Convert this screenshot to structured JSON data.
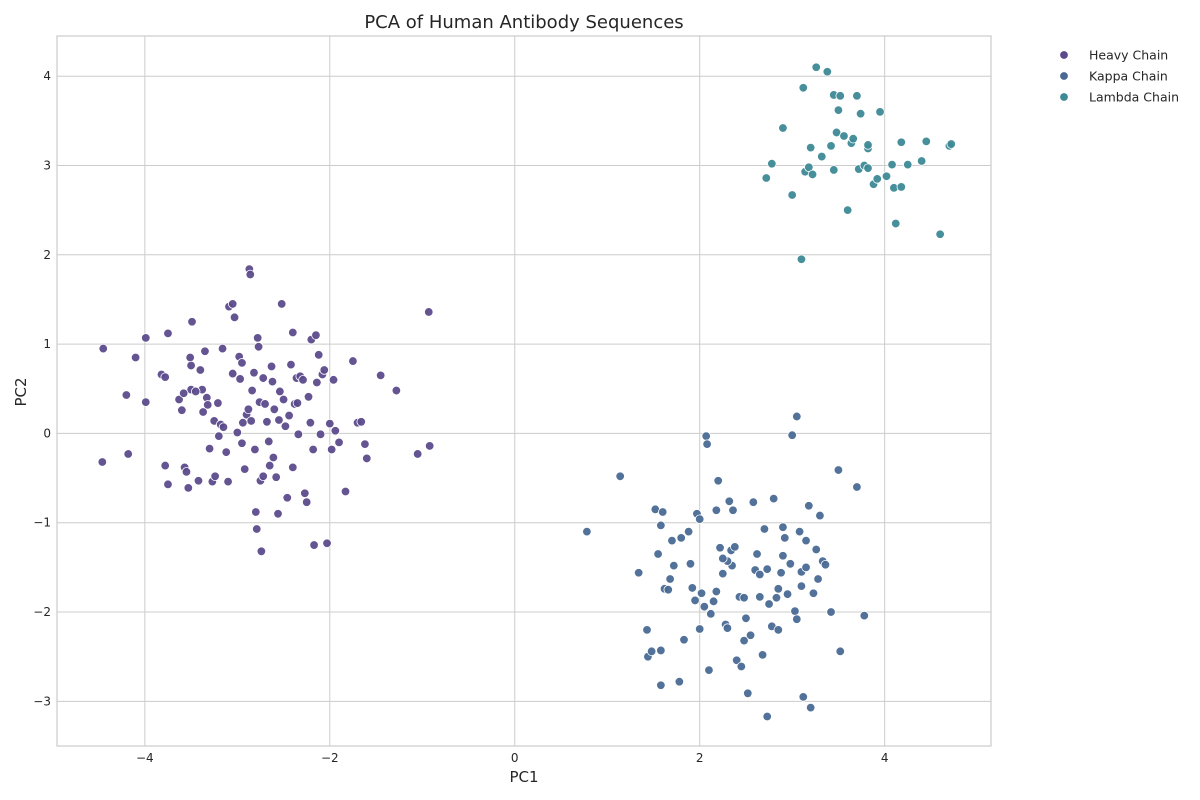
{
  "chart_data": {
    "type": "scatter",
    "title": "PCA of Human Antibody Sequences",
    "xlabel": "PC1",
    "ylabel": "PC2",
    "xlim": [
      -4.95,
      5.15
    ],
    "ylim": [
      -3.5,
      4.45
    ],
    "xticks": [
      -4,
      -2,
      0,
      2,
      4
    ],
    "yticks": [
      -3,
      -2,
      -1,
      0,
      1,
      2,
      3,
      4
    ],
    "grid": true,
    "legend_position": "outside-right",
    "series": [
      {
        "name": "Heavy Chain",
        "color": "#5c4b8c",
        "points": [
          [
            -4.45,
            0.95
          ],
          [
            -4.46,
            -0.32
          ],
          [
            -4.2,
            0.43
          ],
          [
            -4.18,
            -0.23
          ],
          [
            -4.1,
            0.85
          ],
          [
            -3.99,
            1.07
          ],
          [
            -3.99,
            0.35
          ],
          [
            -3.82,
            0.66
          ],
          [
            -3.78,
            0.63
          ],
          [
            -3.78,
            -0.36
          ],
          [
            -3.75,
            1.12
          ],
          [
            -3.75,
            -0.57
          ],
          [
            -3.63,
            0.38
          ],
          [
            -3.6,
            0.26
          ],
          [
            -3.57,
            -0.38
          ],
          [
            -3.55,
            -0.43
          ],
          [
            -3.53,
            -0.61
          ],
          [
            -3.51,
            0.85
          ],
          [
            -3.5,
            0.76
          ],
          [
            -3.5,
            0.49
          ],
          [
            -3.49,
            1.25
          ],
          [
            -3.42,
            -0.53
          ],
          [
            -3.4,
            0.71
          ],
          [
            -3.38,
            0.49
          ],
          [
            -3.37,
            0.24
          ],
          [
            -3.35,
            0.92
          ],
          [
            -3.33,
            0.4
          ],
          [
            -3.32,
            0.32
          ],
          [
            -3.3,
            -0.17
          ],
          [
            -3.27,
            -0.54
          ],
          [
            -3.25,
            0.14
          ],
          [
            -3.24,
            -0.48
          ],
          [
            -3.21,
            0.34
          ],
          [
            -3.18,
            0.1
          ],
          [
            -3.16,
            0.95
          ],
          [
            -3.12,
            -0.21
          ],
          [
            -3.1,
            -0.54
          ],
          [
            -3.09,
            1.42
          ],
          [
            -3.05,
            1.45
          ],
          [
            -3.03,
            1.3
          ],
          [
            -2.98,
            0.86
          ],
          [
            -2.97,
            0.61
          ],
          [
            -2.95,
            0.79
          ],
          [
            -2.94,
            0.12
          ],
          [
            -2.92,
            -0.4
          ],
          [
            -2.9,
            0.21
          ],
          [
            -2.88,
            0.27
          ],
          [
            -2.87,
            1.84
          ],
          [
            -2.86,
            1.78
          ],
          [
            -2.84,
            0.48
          ],
          [
            -2.82,
            0.68
          ],
          [
            -2.81,
            -0.18
          ],
          [
            -2.8,
            -0.88
          ],
          [
            -2.79,
            -1.07
          ],
          [
            -2.78,
            1.07
          ],
          [
            -2.77,
            0.97
          ],
          [
            -2.76,
            0.35
          ],
          [
            -2.75,
            -0.53
          ],
          [
            -2.74,
            -1.32
          ],
          [
            -2.72,
            0.62
          ],
          [
            -2.7,
            0.33
          ],
          [
            -2.68,
            0.13
          ],
          [
            -2.66,
            -0.09
          ],
          [
            -2.65,
            -0.36
          ],
          [
            -2.63,
            0.75
          ],
          [
            -2.62,
            0.58
          ],
          [
            -2.6,
            0.27
          ],
          [
            -2.58,
            -0.49
          ],
          [
            -2.56,
            -0.9
          ],
          [
            -2.54,
            0.47
          ],
          [
            -2.52,
            1.45
          ],
          [
            -2.5,
            0.38
          ],
          [
            -2.48,
            0.08
          ],
          [
            -2.46,
            -0.72
          ],
          [
            -2.44,
            0.2
          ],
          [
            -2.42,
            0.77
          ],
          [
            -2.4,
            1.13
          ],
          [
            -2.38,
            0.33
          ],
          [
            -2.36,
            0.62
          ],
          [
            -2.34,
            -0.01
          ],
          [
            -2.32,
            0.64
          ],
          [
            -2.29,
            0.6
          ],
          [
            -2.27,
            -0.67
          ],
          [
            -2.25,
            -0.77
          ],
          [
            -2.23,
            0.41
          ],
          [
            -2.21,
            0.12
          ],
          [
            -2.2,
            1.05
          ],
          [
            -2.18,
            -0.18
          ],
          [
            -2.17,
            -1.25
          ],
          [
            -2.15,
            1.1
          ],
          [
            -2.14,
            0.57
          ],
          [
            -2.12,
            0.88
          ],
          [
            -2.1,
            -0.01
          ],
          [
            -2.08,
            0.66
          ],
          [
            -2.06,
            0.71
          ],
          [
            -2.03,
            -1.23
          ],
          [
            -2.0,
            0.11
          ],
          [
            -1.98,
            -0.18
          ],
          [
            -1.96,
            0.6
          ],
          [
            -1.94,
            0.03
          ],
          [
            -1.9,
            -0.1
          ],
          [
            -1.83,
            -0.65
          ],
          [
            -1.75,
            0.81
          ],
          [
            -1.7,
            0.12
          ],
          [
            -1.66,
            0.13
          ],
          [
            -1.62,
            -0.12
          ],
          [
            -1.6,
            -0.28
          ],
          [
            -1.45,
            0.65
          ],
          [
            -1.28,
            0.48
          ],
          [
            -1.05,
            -0.23
          ],
          [
            -0.93,
            1.36
          ],
          [
            -0.92,
            -0.14
          ],
          [
            -3.0,
            0.01
          ],
          [
            -2.95,
            -0.11
          ],
          [
            -3.45,
            0.47
          ],
          [
            -2.72,
            -0.48
          ],
          [
            -2.61,
            -0.27
          ],
          [
            -3.05,
            0.67
          ],
          [
            -2.85,
            0.14
          ],
          [
            -2.4,
            -0.38
          ],
          [
            -3.58,
            0.45
          ],
          [
            -3.2,
            -0.03
          ],
          [
            -2.55,
            0.15
          ],
          [
            -2.35,
            0.34
          ],
          [
            -3.15,
            0.07
          ]
        ]
      },
      {
        "name": "Kappa Chain",
        "color": "#4a6a94",
        "points": [
          [
            0.78,
            -1.1
          ],
          [
            1.14,
            -0.48
          ],
          [
            1.34,
            -1.56
          ],
          [
            1.44,
            -2.5
          ],
          [
            1.48,
            -2.44
          ],
          [
            1.52,
            -0.85
          ],
          [
            1.55,
            -1.35
          ],
          [
            1.58,
            -1.03
          ],
          [
            1.6,
            -0.88
          ],
          [
            1.62,
            -1.74
          ],
          [
            1.66,
            -1.75
          ],
          [
            1.7,
            -1.2
          ],
          [
            1.72,
            -1.48
          ],
          [
            1.78,
            -2.78
          ],
          [
            1.8,
            -1.17
          ],
          [
            1.83,
            -2.31
          ],
          [
            1.88,
            -1.1
          ],
          [
            1.92,
            -1.73
          ],
          [
            1.95,
            -1.87
          ],
          [
            1.97,
            -0.9
          ],
          [
            2.0,
            -0.96
          ],
          [
            2.02,
            -1.79
          ],
          [
            2.05,
            -1.94
          ],
          [
            2.07,
            -0.03
          ],
          [
            2.08,
            -0.12
          ],
          [
            2.1,
            -2.65
          ],
          [
            2.12,
            -2.02
          ],
          [
            2.15,
            -1.88
          ],
          [
            2.18,
            -0.86
          ],
          [
            2.2,
            -0.53
          ],
          [
            2.22,
            -1.28
          ],
          [
            2.25,
            -1.57
          ],
          [
            2.28,
            -2.14
          ],
          [
            2.3,
            -2.18
          ],
          [
            2.32,
            -0.76
          ],
          [
            2.34,
            -1.31
          ],
          [
            2.36,
            -0.86
          ],
          [
            2.38,
            -1.27
          ],
          [
            2.4,
            -2.54
          ],
          [
            2.43,
            -1.83
          ],
          [
            2.45,
            -2.61
          ],
          [
            2.48,
            -2.32
          ],
          [
            2.5,
            -2.07
          ],
          [
            2.52,
            -2.91
          ],
          [
            2.55,
            -2.26
          ],
          [
            2.58,
            -0.77
          ],
          [
            2.6,
            -1.53
          ],
          [
            2.62,
            -1.35
          ],
          [
            2.65,
            -1.83
          ],
          [
            2.68,
            -2.48
          ],
          [
            2.7,
            -1.07
          ],
          [
            2.73,
            -1.52
          ],
          [
            2.75,
            -1.91
          ],
          [
            2.78,
            -2.16
          ],
          [
            2.8,
            -0.73
          ],
          [
            2.83,
            -1.84
          ],
          [
            2.85,
            -2.2
          ],
          [
            2.88,
            -1.56
          ],
          [
            2.9,
            -1.37
          ],
          [
            2.92,
            -1.17
          ],
          [
            2.95,
            -1.8
          ],
          [
            2.98,
            -1.46
          ],
          [
            3.0,
            -0.02
          ],
          [
            3.03,
            -1.99
          ],
          [
            3.05,
            0.19
          ],
          [
            3.08,
            -1.1
          ],
          [
            3.1,
            -1.55
          ],
          [
            3.12,
            -2.95
          ],
          [
            3.15,
            -1.2
          ],
          [
            3.18,
            -0.81
          ],
          [
            3.2,
            -3.07
          ],
          [
            3.23,
            -1.79
          ],
          [
            3.26,
            -1.3
          ],
          [
            3.28,
            -1.63
          ],
          [
            3.3,
            -0.92
          ],
          [
            3.33,
            -1.43
          ],
          [
            3.36,
            -1.47
          ],
          [
            3.42,
            -2.0
          ],
          [
            3.5,
            -0.41
          ],
          [
            3.52,
            -2.44
          ],
          [
            3.7,
            -0.6
          ],
          [
            3.78,
            -2.04
          ],
          [
            2.73,
            -3.17
          ],
          [
            1.58,
            -2.82
          ],
          [
            1.43,
            -2.2
          ],
          [
            1.9,
            -1.46
          ],
          [
            2.35,
            -1.48
          ],
          [
            2.48,
            -1.84
          ],
          [
            2.0,
            -2.19
          ],
          [
            1.58,
            -2.43
          ],
          [
            2.85,
            -1.74
          ],
          [
            3.05,
            -2.08
          ],
          [
            2.3,
            -1.43
          ],
          [
            2.65,
            -1.58
          ],
          [
            3.1,
            -1.71
          ],
          [
            1.68,
            -1.63
          ],
          [
            2.18,
            -1.77
          ],
          [
            2.25,
            -1.4
          ],
          [
            2.9,
            -1.05
          ],
          [
            3.15,
            -1.5
          ]
        ]
      },
      {
        "name": "Lambda Chain",
        "color": "#3d8a96",
        "points": [
          [
            2.72,
            2.86
          ],
          [
            2.78,
            3.02
          ],
          [
            2.9,
            3.42
          ],
          [
            3.0,
            2.67
          ],
          [
            3.1,
            1.95
          ],
          [
            3.12,
            3.87
          ],
          [
            3.14,
            2.93
          ],
          [
            3.18,
            2.98
          ],
          [
            3.2,
            3.2
          ],
          [
            3.22,
            2.9
          ],
          [
            3.26,
            4.1
          ],
          [
            3.32,
            3.1
          ],
          [
            3.38,
            4.05
          ],
          [
            3.42,
            3.22
          ],
          [
            3.45,
            3.79
          ],
          [
            3.45,
            2.95
          ],
          [
            3.48,
            3.37
          ],
          [
            3.5,
            3.62
          ],
          [
            3.52,
            3.78
          ],
          [
            3.56,
            3.33
          ],
          [
            3.6,
            2.5
          ],
          [
            3.64,
            3.25
          ],
          [
            3.66,
            3.3
          ],
          [
            3.7,
            3.78
          ],
          [
            3.72,
            2.96
          ],
          [
            3.74,
            3.58
          ],
          [
            3.78,
            3.0
          ],
          [
            3.82,
            3.19
          ],
          [
            3.82,
            2.97
          ],
          [
            3.82,
            3.23
          ],
          [
            3.88,
            2.79
          ],
          [
            3.92,
            2.85
          ],
          [
            3.95,
            3.6
          ],
          [
            4.02,
            2.88
          ],
          [
            4.08,
            3.01
          ],
          [
            4.1,
            2.75
          ],
          [
            4.12,
            2.35
          ],
          [
            4.18,
            3.26
          ],
          [
            4.18,
            2.76
          ],
          [
            4.25,
            3.01
          ],
          [
            4.4,
            3.05
          ],
          [
            4.45,
            3.27
          ],
          [
            4.6,
            2.23
          ],
          [
            4.7,
            3.22
          ],
          [
            4.72,
            3.24
          ]
        ]
      }
    ]
  }
}
